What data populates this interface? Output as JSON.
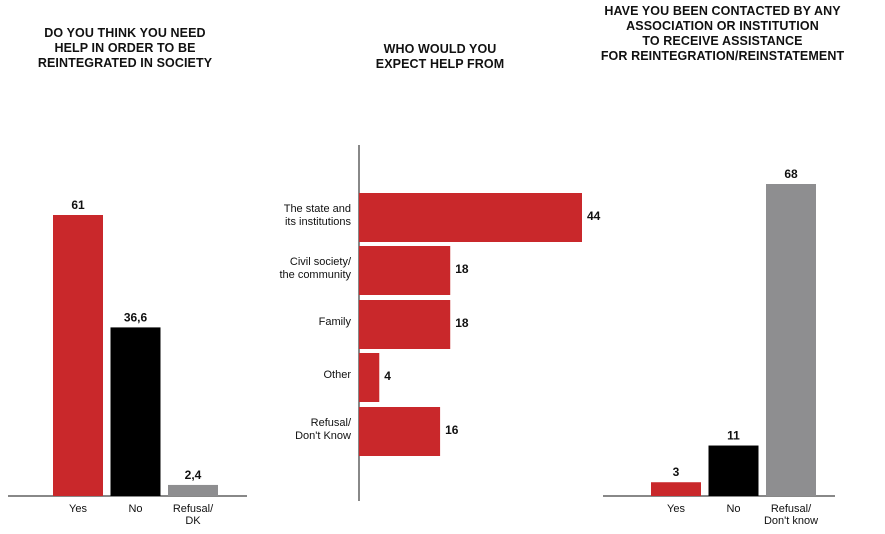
{
  "chart_data": [
    {
      "type": "bar",
      "title": "DO YOU THINK YOU NEED\nHELP IN ORDER TO BE\nREINTEGRATED IN SOCIETY",
      "categories": [
        "Yes",
        "No",
        "Refusal/\nDK"
      ],
      "values": [
        61,
        36.6,
        2.4
      ],
      "value_labels": [
        "61",
        "36,6",
        "2,4"
      ],
      "colors": [
        "#c9282b",
        "#000000",
        "#8e8e90"
      ],
      "ylim": [
        0,
        68
      ]
    },
    {
      "type": "bar",
      "orientation": "horizontal",
      "title": "WHO WOULD YOU\nEXPECT HELP FROM",
      "categories": [
        "The state and\nits institutions",
        "Civil society/\nthe community",
        "Family",
        "Other",
        "Refusal/\nDon't Know"
      ],
      "values": [
        44,
        18,
        18,
        4,
        16
      ],
      "value_labels": [
        "44",
        "18",
        "18",
        "4",
        "16"
      ],
      "colors": [
        "#c9282b",
        "#c9282b",
        "#c9282b",
        "#c9282b",
        "#c9282b"
      ],
      "xlim": [
        0,
        44
      ]
    },
    {
      "type": "bar",
      "title": "HAVE YOU BEEN CONTACTED BY ANY\nASSOCIATION OR INSTITUTION\nTO RECEIVE ASSISTANCE\nFOR REINTEGRATION/REINSTATEMENT",
      "categories": [
        "Yes",
        "No",
        "Refusal/\nDon't know"
      ],
      "values": [
        3,
        11,
        68
      ],
      "value_labels": [
        "3",
        "11",
        "68"
      ],
      "colors": [
        "#c9282b",
        "#000000",
        "#8e8e90"
      ],
      "ylim": [
        0,
        68
      ]
    }
  ]
}
